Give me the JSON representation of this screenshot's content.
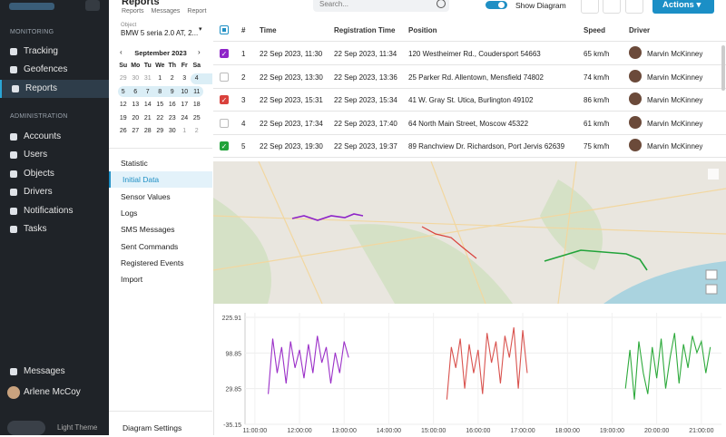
{
  "sidebar": {
    "sections": [
      {
        "title": "MONITORING",
        "items": [
          "Tracking",
          "Geofences",
          "Reports"
        ]
      },
      {
        "title": "ADMINISTRATION",
        "items": [
          "Accounts",
          "Users",
          "Objects",
          "Drivers",
          "Notifications",
          "Tasks"
        ]
      }
    ],
    "active": [
      0,
      2
    ],
    "bottom": {
      "messages": "Messages",
      "user": "Arlene McCoy",
      "theme": "Light Theme"
    }
  },
  "header": {
    "title": "Reports",
    "breadcrumb": [
      "Reports",
      "Messages",
      "Report"
    ],
    "search_placeholder": "Search...",
    "toggle_label": "Show Diagram",
    "action": "Actions"
  },
  "panel": {
    "object_label": "Object",
    "object_value": "BMW 5 seria 2.0 AT, 2...",
    "calendar": {
      "month": "September 2023",
      "weekdays": [
        "Su",
        "Mo",
        "Tu",
        "We",
        "Th",
        "Fr",
        "Sa"
      ],
      "days": [
        [
          29,
          30,
          31,
          1,
          2,
          3,
          4
        ],
        [
          5,
          6,
          7,
          8,
          9,
          10,
          11
        ],
        [
          12,
          13,
          14,
          15,
          16,
          17,
          18
        ],
        [
          19,
          20,
          21,
          22,
          23,
          24,
          25
        ],
        [
          26,
          27,
          28,
          29,
          30,
          1,
          2
        ]
      ]
    },
    "menu": [
      "Statistic",
      "Initial Data",
      "Sensor Values",
      "Logs",
      "SMS Messages",
      "Sent Commands",
      "Registered Events",
      "Import"
    ],
    "active": 1,
    "footer": "Diagram Settings"
  },
  "table": {
    "columns": [
      "#",
      "Time",
      "Registration Time",
      "Position",
      "Speed",
      "Driver"
    ],
    "rows": [
      {
        "cells": [
          1,
          "22 Sep 2023, 11:30",
          "22 Sep 2023, 11:34",
          "120 Westheimer Rd., Coudersport 54663",
          "65 km/h",
          "Marvin McKinney"
        ],
        "checked": true,
        "color": "#8e24c8"
      },
      {
        "cells": [
          2,
          "22 Sep 2023, 13:30",
          "22 Sep 2023, 13:36",
          "25 Parker Rd. Allentown, Mensfield 74802",
          "74 km/h",
          "Marvin McKinney"
        ],
        "checked": false,
        "color": "#bbbbbb"
      },
      {
        "cells": [
          3,
          "22 Sep 2023, 15:31",
          "22 Sep 2023, 15:34",
          "41 W. Gray St. Utica, Burlington 49102",
          "86 km/h",
          "Marvin McKinney"
        ],
        "checked": true,
        "color": "#d9413c"
      },
      {
        "cells": [
          4,
          "22 Sep 2023, 17:34",
          "22 Sep 2023, 17:40",
          "64 North Main Street, Moscow 45322",
          "61 km/h",
          "Marvin McKinney"
        ],
        "checked": false,
        "color": "#bbbbbb"
      },
      {
        "cells": [
          5,
          "22 Sep 2023, 19:30",
          "22 Sep 2023, 19:37",
          "89 Ranchview Dr. Richardson, Port Jervis 62639",
          "75 km/h",
          "Marvin McKinney"
        ],
        "checked": true,
        "color": "#22a33a"
      }
    ]
  },
  "chart_data": {
    "type": "line",
    "xlim": [
      10.78,
      21.45
    ],
    "xticks": [
      {
        "value": 11,
        "label": "11:00:00"
      },
      {
        "value": 12,
        "label": "12:00:00"
      },
      {
        "value": 13,
        "label": "13:00:00"
      },
      {
        "value": 14,
        "label": "14:00:00"
      },
      {
        "value": 15,
        "label": "15:00:00"
      },
      {
        "value": 16,
        "label": "16:00:00"
      },
      {
        "value": 17,
        "label": "17:00:00"
      },
      {
        "value": 18,
        "label": "18:00:00"
      },
      {
        "value": 19,
        "label": "19:00:00"
      },
      {
        "value": 20,
        "label": "20:00:00"
      },
      {
        "value": 21,
        "label": "21:00:00"
      }
    ],
    "ylim": [
      -35.15,
      225.91
    ],
    "yticks": [
      -35.15,
      29.85,
      98.85,
      225.91
    ],
    "grid": true,
    "series": [
      {
        "color": "#9b30c8",
        "x": [
          11.3,
          11.4,
          11.5,
          11.6,
          11.7,
          11.8,
          11.9,
          12.0,
          12.1,
          12.2,
          12.3,
          12.4,
          12.5,
          12.6,
          12.7,
          12.8,
          12.9,
          13.0,
          13.1
        ],
        "values": [
          20,
          150,
          60,
          120,
          40,
          140,
          70,
          110,
          50,
          130,
          60,
          160,
          80,
          120,
          40,
          100,
          60,
          140,
          90
        ]
      },
      {
        "color": "#d9534f",
        "x": [
          15.3,
          15.4,
          15.5,
          15.6,
          15.7,
          15.8,
          15.9,
          16.0,
          16.1,
          16.2,
          16.3,
          16.4,
          16.5,
          16.6,
          16.7,
          16.8,
          16.9,
          17.0,
          17.1
        ],
        "values": [
          10,
          120,
          70,
          150,
          30,
          130,
          60,
          110,
          20,
          170,
          80,
          140,
          40,
          160,
          90,
          190,
          30,
          180,
          60
        ]
      },
      {
        "color": "#2eaa3c",
        "x": [
          19.3,
          19.4,
          19.5,
          19.6,
          19.7,
          19.8,
          19.9,
          20.0,
          20.1,
          20.2,
          20.3,
          20.4,
          20.5,
          20.6,
          20.7,
          20.8,
          20.9,
          21.0,
          21.1,
          21.2
        ],
        "values": [
          30,
          110,
          10,
          140,
          60,
          20,
          120,
          50,
          150,
          30,
          90,
          170,
          40,
          130,
          70,
          160,
          100,
          140,
          60,
          120
        ]
      }
    ]
  }
}
